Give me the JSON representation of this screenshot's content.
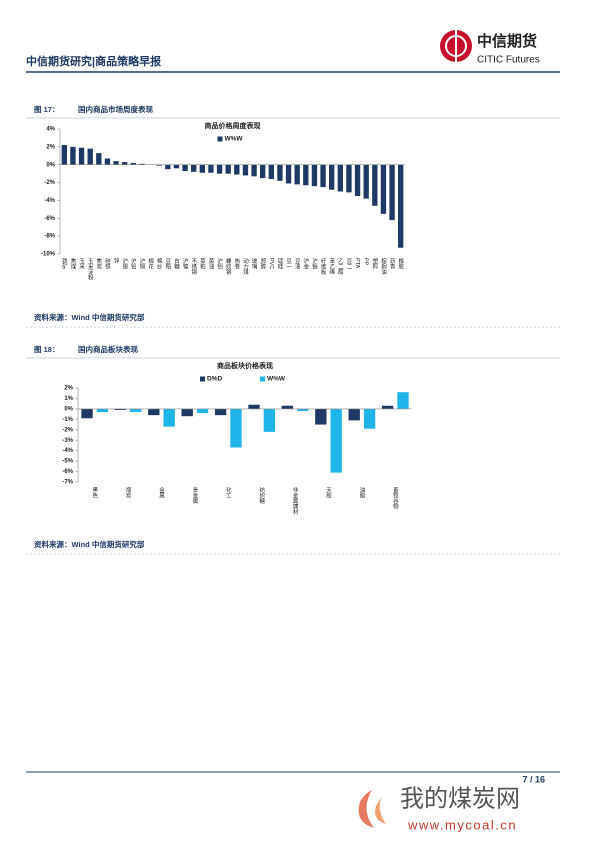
{
  "header": {
    "title": "中信期货研究|商品策略早报",
    "logo_cn": "中信期货",
    "logo_en": "CITIC Futures"
  },
  "figures": [
    {
      "number": "图 17：",
      "caption": "国内商品市场周度表现",
      "source": "资料来源：Wind  中信期货研究部"
    },
    {
      "number": "图 18：",
      "caption": "国内商品板块表现",
      "source": "资料来源：Wind  中信期货研究部"
    }
  ],
  "chart_data": [
    {
      "type": "bar",
      "title": "商品价格周度表现",
      "categories": [
        "铁矿",
        "焦煤",
        "玉米",
        "玉米淀粉",
        "焦炭",
        "硅铁",
        "锌",
        "沪锡",
        "沪铅",
        "沪铜",
        "棉花",
        "棉纱",
        "豆粕",
        "白糖",
        "沪镍",
        "不锈钢",
        "菜粕",
        "菜油",
        "沪铝",
        "螺纹钢",
        "热卷",
        "动力煤",
        "玻璃",
        "郑醇",
        "PVC",
        "锰硅",
        "豆一",
        "豆油",
        "沪金",
        "沪银",
        "纤维板",
        "苯乙烯",
        "乙二醇",
        "豆二",
        "PTA",
        "PP",
        "塑料",
        "棕榈油",
        "沥青",
        "橡胶"
      ],
      "series": [
        {
          "name": "W%W",
          "color": "#1f3864",
          "values": [
            2.2,
            2.0,
            1.9,
            1.8,
            1.3,
            0.7,
            0.4,
            0.3,
            0.2,
            0.1,
            0.0,
            -0.1,
            -0.5,
            -0.4,
            -0.7,
            -0.8,
            -0.9,
            -0.9,
            -1.0,
            -1.0,
            -1.1,
            -1.2,
            -1.3,
            -1.5,
            -1.6,
            -1.8,
            -2.1,
            -2.2,
            -2.3,
            -2.4,
            -2.5,
            -2.8,
            -3.0,
            -3.1,
            -3.5,
            -3.8,
            -4.6,
            -5.5,
            -6.2,
            -9.3
          ]
        }
      ],
      "ylim": [
        -10,
        4
      ],
      "yticks": [
        {
          "value": -10,
          "label": "-10%"
        },
        {
          "value": -8,
          "label": "-8%"
        },
        {
          "value": -6,
          "label": "-6%"
        },
        {
          "value": -4,
          "label": "-4%"
        },
        {
          "value": -2,
          "label": "-2%"
        },
        {
          "value": 0,
          "label": "0%"
        },
        {
          "value": 2,
          "label": "2%"
        },
        {
          "value": 4,
          "label": "4%"
        }
      ]
    },
    {
      "type": "bar",
      "title": "商品板块价格表现",
      "categories": [
        "黑色",
        "煤炭",
        "金属",
        "贵金属",
        "化工",
        "纺织糖",
        "非金属建材",
        "天胶",
        "油脂",
        "畜牧谷物"
      ],
      "series": [
        {
          "name": "D%D",
          "color": "#1f3864",
          "values": [
            -0.9,
            -0.1,
            -0.6,
            -0.7,
            -0.6,
            0.4,
            0.3,
            -1.5,
            -1.1,
            0.3
          ]
        },
        {
          "name": "W%W",
          "color": "#1fb5e8",
          "values": [
            -0.3,
            -0.3,
            -1.7,
            -0.4,
            -3.7,
            -2.2,
            -0.2,
            -6.1,
            -1.9,
            1.6
          ]
        }
      ],
      "ylim": [
        -7,
        2
      ],
      "yticks": [
        {
          "value": -7,
          "label": "-7%"
        },
        {
          "value": -6,
          "label": "-6%"
        },
        {
          "value": -5,
          "label": "-5%"
        },
        {
          "value": -4,
          "label": "-4%"
        },
        {
          "value": -3,
          "label": "-3%"
        },
        {
          "value": -2,
          "label": "-2%"
        },
        {
          "value": -1,
          "label": "-1%"
        },
        {
          "value": 0,
          "label": "0%"
        },
        {
          "value": 1,
          "label": "1%"
        },
        {
          "value": 2,
          "label": "2%"
        }
      ]
    }
  ],
  "footer": {
    "page": "7 / 16"
  },
  "watermark": {
    "name": "我的煤炭网",
    "url": "www.mycoal.cn"
  }
}
